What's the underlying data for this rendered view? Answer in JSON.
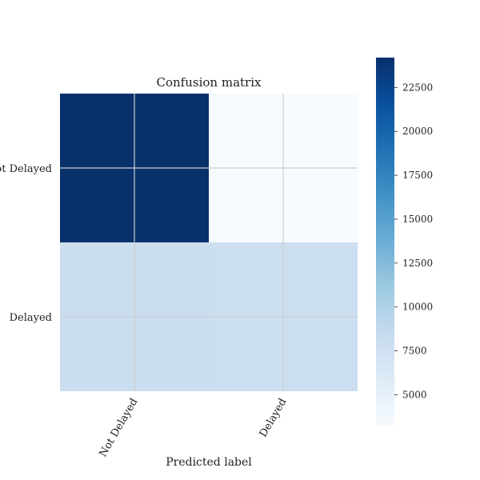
{
  "chart_data": {
    "type": "heatmap",
    "title": "Confusion matrix",
    "xlabel": "Predicted label",
    "ylabel": "",
    "x_categories": [
      "Not Delayed",
      "Delayed"
    ],
    "y_categories": [
      "Not Delayed",
      "Delayed"
    ],
    "values": [
      [
        24200,
        3200
      ],
      [
        8000,
        7800
      ]
    ],
    "colorbar": {
      "min": 3200,
      "max": 24200,
      "ticks": [
        5000,
        7500,
        10000,
        12500,
        15000,
        17500,
        20000,
        22500
      ],
      "tick_labels": [
        "5000",
        "7500",
        "10000",
        "12500",
        "15000",
        "17500",
        "20000",
        "22500"
      ]
    },
    "colormap": "Blues",
    "colors": {
      "min": "#f7fbff",
      "max": "#08306b",
      "grid": "#cccccc"
    },
    "grid": true
  }
}
